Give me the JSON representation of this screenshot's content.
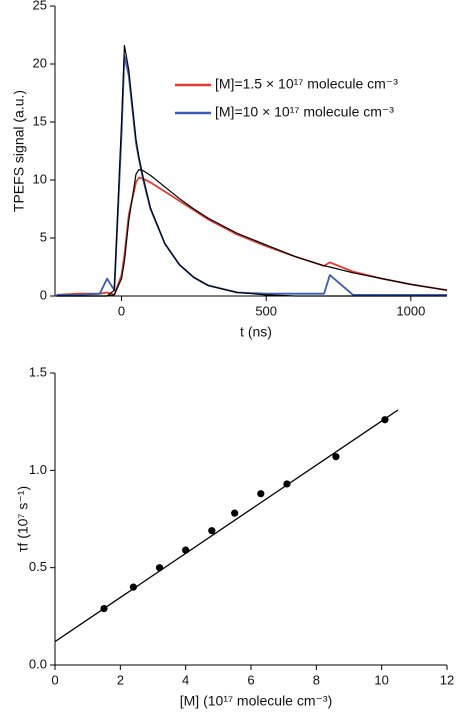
{
  "chart_data": [
    {
      "type": "line",
      "xlabel": "t (ns)",
      "ylabel": "TPEFS signal (a.u.)",
      "x": [
        -225,
        -150,
        -75,
        -50,
        -25,
        0,
        10,
        25,
        50,
        60,
        75,
        100,
        150,
        200,
        250,
        300,
        400,
        500,
        600,
        700,
        720,
        800,
        900,
        1000,
        1100,
        1125
      ],
      "series": [
        {
          "name": "[M]=1.5 × 10¹⁷ molecule cm⁻³",
          "color": "#e8392a",
          "values": [
            0.1,
            0.2,
            0.2,
            0.3,
            0.1,
            1.8,
            3.5,
            7,
            9.8,
            10.2,
            10.1,
            9.8,
            9.0,
            8.2,
            7.4,
            6.6,
            5.3,
            4.3,
            3.4,
            2.6,
            2.9,
            2.1,
            1.5,
            1.0,
            0.6,
            0.5
          ]
        },
        {
          "name": "[M]=10 × 10¹⁷ molecule cm⁻³",
          "color": "#3a5bb8",
          "values": [
            0.1,
            0.1,
            0.2,
            1.5,
            0.5,
            14,
            20.7,
            19,
            13.2,
            11.8,
            10,
            7.5,
            4.5,
            2.7,
            1.6,
            0.9,
            0.3,
            0.2,
            0.2,
            0.2,
            1.8,
            0.1,
            0.1,
            0.1,
            0.1,
            0.1
          ]
        },
        {
          "color": "#000000",
          "values": [
            0,
            0,
            0,
            0,
            0.5,
            15,
            21.6,
            19.5,
            13.5,
            12,
            10.2,
            7.6,
            4.5,
            2.7,
            1.6,
            0.9,
            0.3,
            0.1,
            0,
            0,
            0,
            0,
            0,
            0,
            0,
            0
          ]
        },
        {
          "color": "#000000",
          "values": [
            0,
            0,
            0,
            0,
            0.1,
            1.5,
            3,
            6.5,
            10.5,
            10.9,
            10.8,
            10.4,
            9.4,
            8.4,
            7.5,
            6.7,
            5.4,
            4.4,
            3.4,
            2.6,
            2.5,
            2.0,
            1.5,
            1.0,
            0.6,
            0.5
          ]
        }
      ],
      "xlim": [
        -230,
        1125
      ],
      "xticks": [
        0,
        500,
        1000
      ],
      "ylim": [
        0,
        25
      ],
      "yticks": [
        0,
        5,
        10,
        15,
        20,
        25
      ]
    },
    {
      "type": "scatter",
      "xlabel": "[M] (10¹⁷ molecule cm⁻³)",
      "ylabel": "τf (10⁷ s⁻¹)",
      "x": [
        1.5,
        2.4,
        3.2,
        4.0,
        4.8,
        5.5,
        6.3,
        7.1,
        8.6,
        10.1
      ],
      "values": [
        0.29,
        0.4,
        0.5,
        0.59,
        0.69,
        0.78,
        0.88,
        0.93,
        1.07,
        1.26
      ],
      "color": "#000000",
      "fit_line": {
        "x": [
          0,
          10.5
        ],
        "values": [
          0.12,
          1.31
        ]
      },
      "xlim": [
        0,
        12
      ],
      "xticks": [
        0,
        2,
        4,
        6,
        8,
        10,
        12
      ],
      "ylim": [
        0,
        1.5
      ],
      "yticks": [
        {
          "value": 0,
          "label": "0.0"
        },
        0.5,
        {
          "value": 1,
          "label": "1.0"
        },
        1.5
      ]
    }
  ]
}
